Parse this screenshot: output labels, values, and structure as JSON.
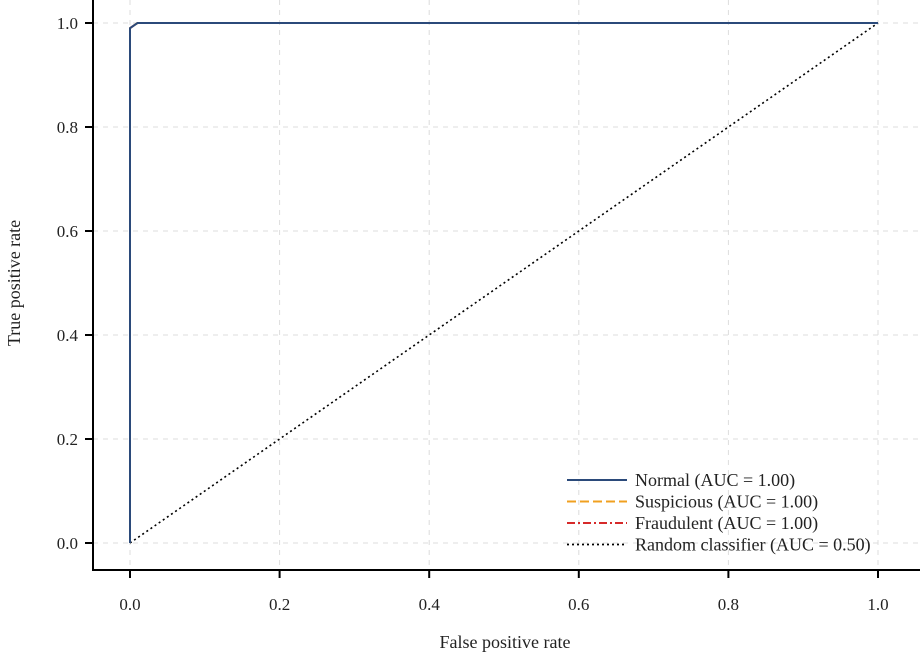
{
  "chart_data": {
    "type": "line",
    "title": "",
    "xlabel": "False positive rate",
    "ylabel": "True positive rate",
    "xlim": [
      0,
      1
    ],
    "ylim": [
      0,
      1
    ],
    "xticks": [
      "0.0",
      "0.2",
      "0.4",
      "0.6",
      "0.8",
      "1.0"
    ],
    "yticks": [
      "0.0",
      "0.2",
      "0.4",
      "0.6",
      "0.8",
      "1.0"
    ],
    "grid": true,
    "legend_position": "bottom-right",
    "series": [
      {
        "name": "Normal (AUC = 1.00)",
        "color": "#2b4a7a",
        "dash": "solid",
        "x": [
          0,
          0,
          0.01,
          1
        ],
        "y": [
          0,
          0.99,
          1,
          1
        ]
      },
      {
        "name": "Suspicious (AUC = 1.00)",
        "color": "#f0a020",
        "dash": "dashed",
        "x": [
          0,
          0,
          0.01,
          1
        ],
        "y": [
          0,
          0.99,
          1,
          1
        ]
      },
      {
        "name": "Fraudulent (AUC = 1.00)",
        "color": "#d62a2a",
        "dash": "dashdot",
        "x": [
          0,
          0,
          0.01,
          1
        ],
        "y": [
          0,
          0.99,
          1,
          1
        ]
      },
      {
        "name": "Random classifier (AUC = 0.50)",
        "color": "#000000",
        "dash": "dotted",
        "x": [
          0,
          1
        ],
        "y": [
          0,
          1
        ]
      }
    ]
  }
}
